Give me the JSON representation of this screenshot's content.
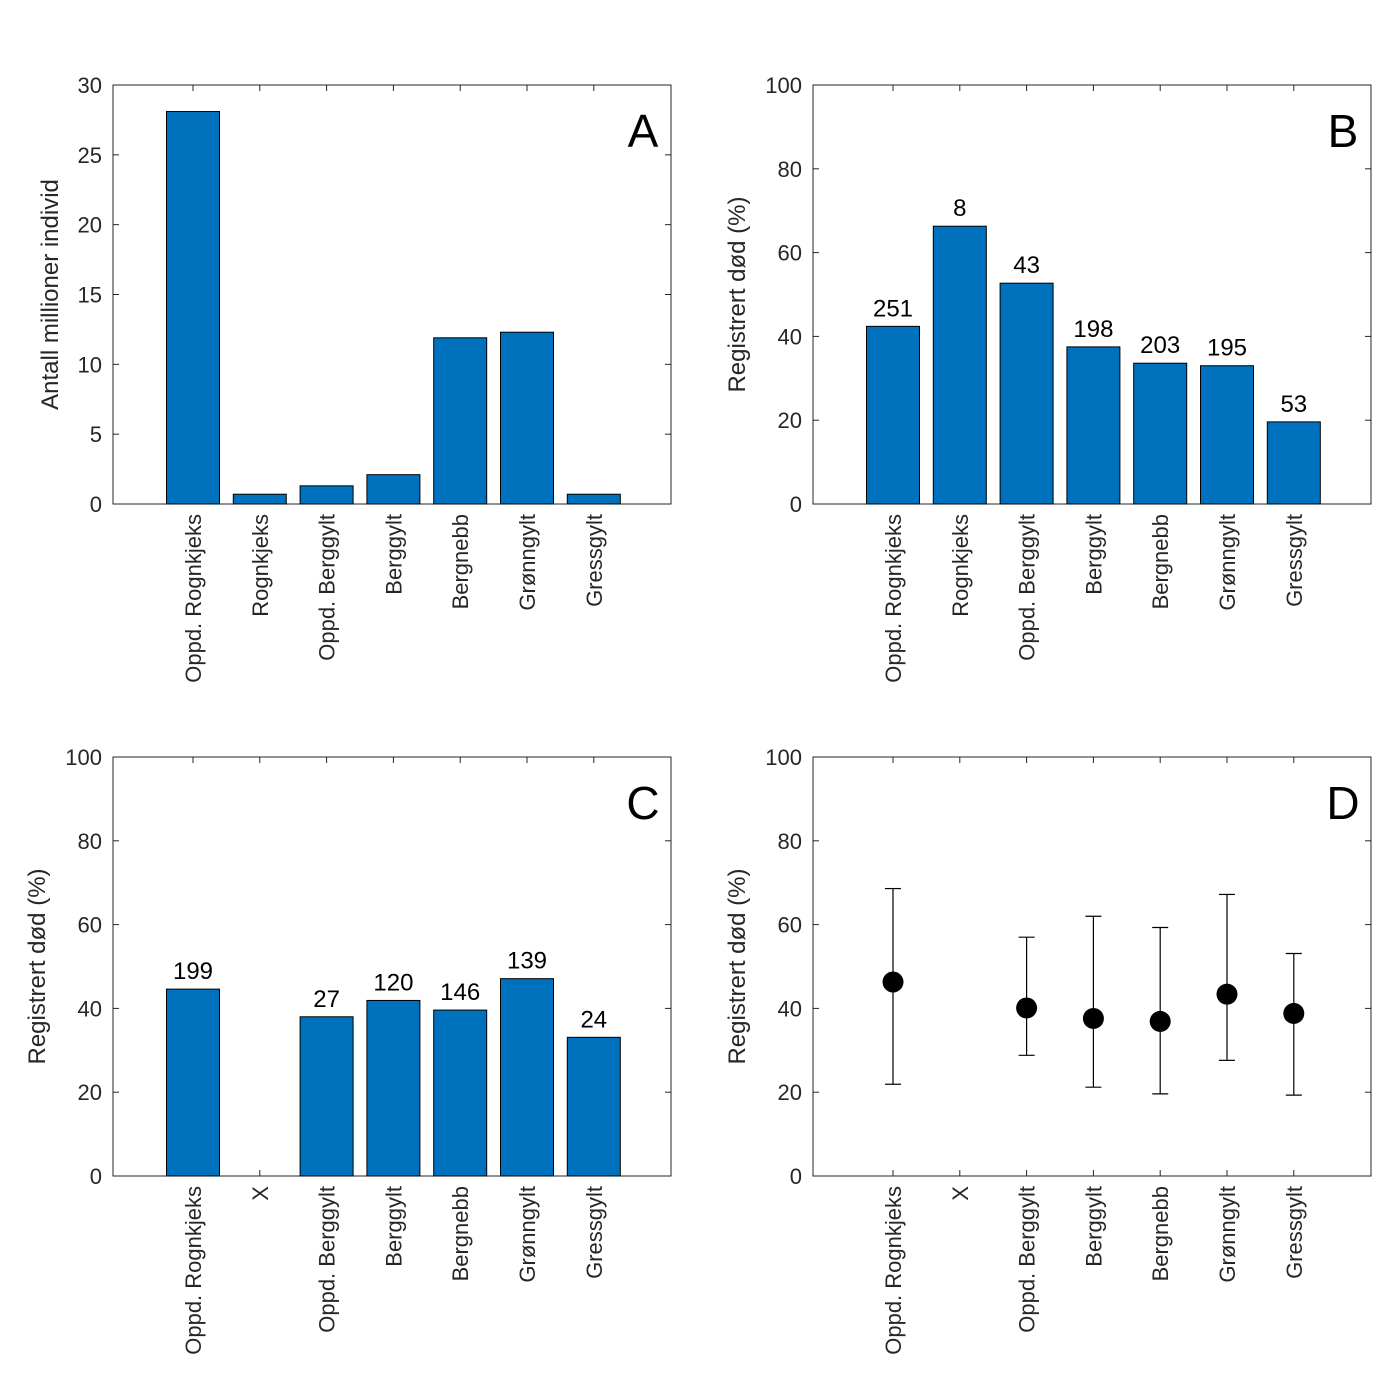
{
  "colors": {
    "bar": "#0072BD",
    "marker": "#000000"
  },
  "chart_data": [
    {
      "id": "A",
      "type": "bar",
      "panel_letter": "A",
      "legend_position": "top-right",
      "categories": [
        "Oppd. Rognkjeks",
        "Rognkjeks",
        "Oppd. Berggylt",
        "Berggylt",
        "Bergnebb",
        "Grønngylt",
        "Gressgylt"
      ],
      "values": [
        28.1,
        0.7,
        1.3,
        2.1,
        11.9,
        12.3,
        0.7
      ],
      "data_labels": [],
      "ylabel": "Antall millioner individ",
      "xlabel": "",
      "ylim": [
        0,
        30
      ],
      "yticks": [
        "0",
        "5",
        "10",
        "15",
        "20",
        "25",
        "30"
      ],
      "grid": false
    },
    {
      "id": "B",
      "type": "bar",
      "panel_letter": "B",
      "legend_position": "top-right",
      "categories": [
        "Oppd. Rognkjeks",
        "Rognkjeks",
        "Oppd. Berggylt",
        "Berggylt",
        "Bergnebb",
        "Grønngylt",
        "Gressgylt"
      ],
      "values": [
        42.4,
        66.3,
        52.7,
        37.5,
        33.6,
        33.0,
        19.6
      ],
      "data_labels": [
        "251",
        "8",
        "43",
        "198",
        "203",
        "195",
        "53"
      ],
      "ylabel": "Registrert død (%)",
      "xlabel": "",
      "ylim": [
        0,
        100
      ],
      "yticks": [
        "0",
        "20",
        "40",
        "60",
        "80",
        "100"
      ],
      "grid": false
    },
    {
      "id": "C",
      "type": "bar",
      "panel_letter": "C",
      "legend_position": "top-right",
      "categories": [
        "Oppd. Rognkjeks",
        "X",
        "Oppd. Berggylt",
        "Berggylt",
        "Bergnebb",
        "Grønngylt",
        "Gressgylt"
      ],
      "values": [
        44.6,
        null,
        38.0,
        41.9,
        39.6,
        47.1,
        33.1
      ],
      "data_labels": [
        "199",
        "",
        "27",
        "120",
        "146",
        "139",
        "24"
      ],
      "ylabel": "Registrert død (%)",
      "xlabel": "",
      "ylim": [
        0,
        100
      ],
      "yticks": [
        "0",
        "20",
        "40",
        "60",
        "80",
        "100"
      ],
      "grid": false
    },
    {
      "id": "D",
      "type": "scatter",
      "panel_letter": "D",
      "legend_position": "top-right",
      "categories": [
        "Oppd. Rognkjeks",
        "X",
        "Oppd. Berggylt",
        "Berggylt",
        "Bergnebb",
        "Grønngylt",
        "Gressgylt"
      ],
      "values": [
        46.3,
        null,
        40.1,
        37.6,
        36.9,
        43.4,
        38.8
      ],
      "err_low": [
        21.9,
        null,
        28.8,
        21.2,
        19.6,
        27.6,
        19.3
      ],
      "err_high": [
        68.6,
        null,
        57.0,
        62.0,
        59.3,
        67.2,
        53.1
      ],
      "data_labels": [],
      "ylabel": "Registrert død (%)",
      "xlabel": "",
      "ylim": [
        0,
        100
      ],
      "yticks": [
        "0",
        "20",
        "40",
        "60",
        "80",
        "100"
      ],
      "grid": false
    }
  ]
}
